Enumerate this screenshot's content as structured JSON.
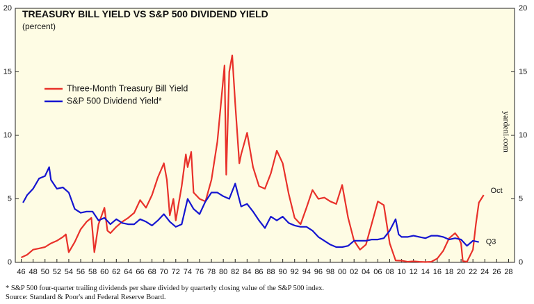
{
  "chart_data": {
    "type": "line",
    "title": "TREASURY BILL YIELD VS S&P 500 DIVIDEND YIELD",
    "subtitle": "(percent)",
    "source_credit": "yardeni.com",
    "footnotes": [
      "*   S&P 500 four-quarter trailing dividends per share divided by quarterly closing value of the S&P 500 index.",
      "     Source: Standard & Poor's and Federal Reserve Board."
    ],
    "xlim": [
      1945,
      2029
    ],
    "ylim": [
      0,
      20
    ],
    "yticks": [
      0,
      5,
      10,
      15,
      20
    ],
    "xticks": [
      {
        "value": 1946,
        "label": "46"
      },
      {
        "value": 1948,
        "label": "48"
      },
      {
        "value": 1950,
        "label": "50"
      },
      {
        "value": 1952,
        "label": "52"
      },
      {
        "value": 1954,
        "label": "54"
      },
      {
        "value": 1956,
        "label": "56"
      },
      {
        "value": 1958,
        "label": "58"
      },
      {
        "value": 1960,
        "label": "60"
      },
      {
        "value": 1962,
        "label": "62"
      },
      {
        "value": 1964,
        "label": "64"
      },
      {
        "value": 1966,
        "label": "66"
      },
      {
        "value": 1968,
        "label": "68"
      },
      {
        "value": 1970,
        "label": "70"
      },
      {
        "value": 1972,
        "label": "72"
      },
      {
        "value": 1974,
        "label": "74"
      },
      {
        "value": 1976,
        "label": "76"
      },
      {
        "value": 1978,
        "label": "78"
      },
      {
        "value": 1980,
        "label": "80"
      },
      {
        "value": 1982,
        "label": "82"
      },
      {
        "value": 1984,
        "label": "84"
      },
      {
        "value": 1986,
        "label": "86"
      },
      {
        "value": 1988,
        "label": "88"
      },
      {
        "value": 1990,
        "label": "90"
      },
      {
        "value": 1992,
        "label": "92"
      },
      {
        "value": 1994,
        "label": "94"
      },
      {
        "value": 1996,
        "label": "96"
      },
      {
        "value": 1998,
        "label": "98"
      },
      {
        "value": 2000,
        "label": "00"
      },
      {
        "value": 2002,
        "label": "02"
      },
      {
        "value": 2004,
        "label": "04"
      },
      {
        "value": 2006,
        "label": "06"
      },
      {
        "value": 2008,
        "label": "08"
      },
      {
        "value": 2010,
        "label": "10"
      },
      {
        "value": 2012,
        "label": "12"
      },
      {
        "value": 2014,
        "label": "14"
      },
      {
        "value": 2016,
        "label": "16"
      },
      {
        "value": 2018,
        "label": "18"
      },
      {
        "value": 2020,
        "label": "20"
      },
      {
        "value": 2022,
        "label": "22"
      },
      {
        "value": 2024,
        "label": "24"
      },
      {
        "value": 2026,
        "label": "26"
      },
      {
        "value": 2028,
        "label": "28"
      }
    ],
    "series": [
      {
        "name": "Three-Month Treasury Bill Yield",
        "color": "#e8312a",
        "end_label": "Oct",
        "x": [
          1946,
          1947,
          1948,
          1949,
          1950,
          1951,
          1952,
          1953,
          1953.5,
          1954,
          1955,
          1956,
          1957,
          1957.8,
          1958.3,
          1959,
          1960,
          1960.5,
          1961,
          1962,
          1963,
          1964,
          1965,
          1966,
          1967,
          1968,
          1969,
          1970,
          1970.5,
          1971,
          1971.6,
          1972,
          1973,
          1973.7,
          1974,
          1974.6,
          1975,
          1976,
          1977,
          1978,
          1979,
          1980.2,
          1980.5,
          1981,
          1981.5,
          1982,
          1982.7,
          1983,
          1984,
          1985,
          1986,
          1987,
          1988,
          1989,
          1990,
          1991,
          1992,
          1993,
          1994,
          1995,
          1996,
          1997,
          1998,
          1999,
          2000,
          2001,
          2002,
          2003,
          2004,
          2005,
          2006,
          2007,
          2008,
          2009,
          2010,
          2011,
          2012,
          2013,
          2014,
          2015,
          2016,
          2017,
          2018,
          2019,
          2019.5,
          2020,
          2020.3,
          2021,
          2022,
          2022.5,
          2023,
          2023.8
        ],
        "values": [
          0.38,
          0.6,
          1.0,
          1.1,
          1.2,
          1.5,
          1.7,
          2.0,
          2.2,
          0.8,
          1.6,
          2.6,
          3.2,
          3.5,
          0.8,
          3.0,
          4.3,
          2.5,
          2.3,
          2.8,
          3.2,
          3.5,
          3.9,
          4.9,
          4.3,
          5.3,
          6.7,
          7.8,
          6.5,
          3.7,
          5.0,
          3.3,
          6.0,
          8.5,
          7.5,
          8.7,
          5.5,
          5.0,
          4.8,
          6.5,
          9.5,
          15.5,
          6.9,
          15.0,
          16.3,
          12.5,
          7.8,
          8.5,
          10.2,
          7.5,
          6.0,
          5.8,
          7.0,
          8.8,
          7.8,
          5.4,
          3.5,
          3.0,
          4.3,
          5.7,
          5.0,
          5.1,
          4.8,
          4.6,
          6.1,
          3.5,
          1.7,
          1.0,
          1.4,
          3.1,
          4.8,
          4.5,
          1.5,
          0.15,
          0.13,
          0.05,
          0.08,
          0.05,
          0.03,
          0.05,
          0.3,
          0.9,
          1.9,
          2.3,
          2.0,
          1.5,
          0.1,
          0.05,
          1.0,
          3.0,
          4.7,
          5.3
        ]
      },
      {
        "name": "S&P 500 Dividend Yield*",
        "color": "#1515d0",
        "end_label": "Q3",
        "x": [
          1946.3,
          1947,
          1948,
          1949,
          1950,
          1950.7,
          1951,
          1952,
          1953,
          1954,
          1955,
          1956,
          1957,
          1958,
          1959,
          1960,
          1961,
          1962,
          1963,
          1964,
          1965,
          1966,
          1967,
          1968,
          1969,
          1970,
          1971,
          1972,
          1973,
          1974,
          1975,
          1976,
          1977,
          1978,
          1979,
          1980,
          1981,
          1982,
          1983,
          1984,
          1985,
          1986,
          1987,
          1988,
          1989,
          1990,
          1991,
          1992,
          1993,
          1994,
          1995,
          1996,
          1997,
          1998,
          1999,
          2000,
          2001,
          2002,
          2003,
          2004,
          2005,
          2006,
          2007,
          2008,
          2009,
          2009.5,
          2010,
          2011,
          2012,
          2013,
          2014,
          2015,
          2016,
          2017,
          2018,
          2019,
          2020,
          2021,
          2022,
          2023
        ],
        "values": [
          4.7,
          5.3,
          5.8,
          6.6,
          6.8,
          7.5,
          6.5,
          5.8,
          5.9,
          5.5,
          4.2,
          3.9,
          4.0,
          4.0,
          3.3,
          3.5,
          3.0,
          3.4,
          3.1,
          3.0,
          3.0,
          3.4,
          3.2,
          2.9,
          3.3,
          3.8,
          3.2,
          2.8,
          3.0,
          5.0,
          4.2,
          3.8,
          4.8,
          5.5,
          5.5,
          5.2,
          5.0,
          6.2,
          4.4,
          4.6,
          4.0,
          3.3,
          2.7,
          3.6,
          3.3,
          3.6,
          3.1,
          2.9,
          2.8,
          2.8,
          2.5,
          2.0,
          1.7,
          1.4,
          1.2,
          1.2,
          1.3,
          1.7,
          1.7,
          1.7,
          1.8,
          1.8,
          1.9,
          2.5,
          3.4,
          2.2,
          2.0,
          2.0,
          2.1,
          2.0,
          1.9,
          2.1,
          2.1,
          2.0,
          1.8,
          1.9,
          1.8,
          1.3,
          1.7,
          1.6
        ]
      }
    ]
  }
}
